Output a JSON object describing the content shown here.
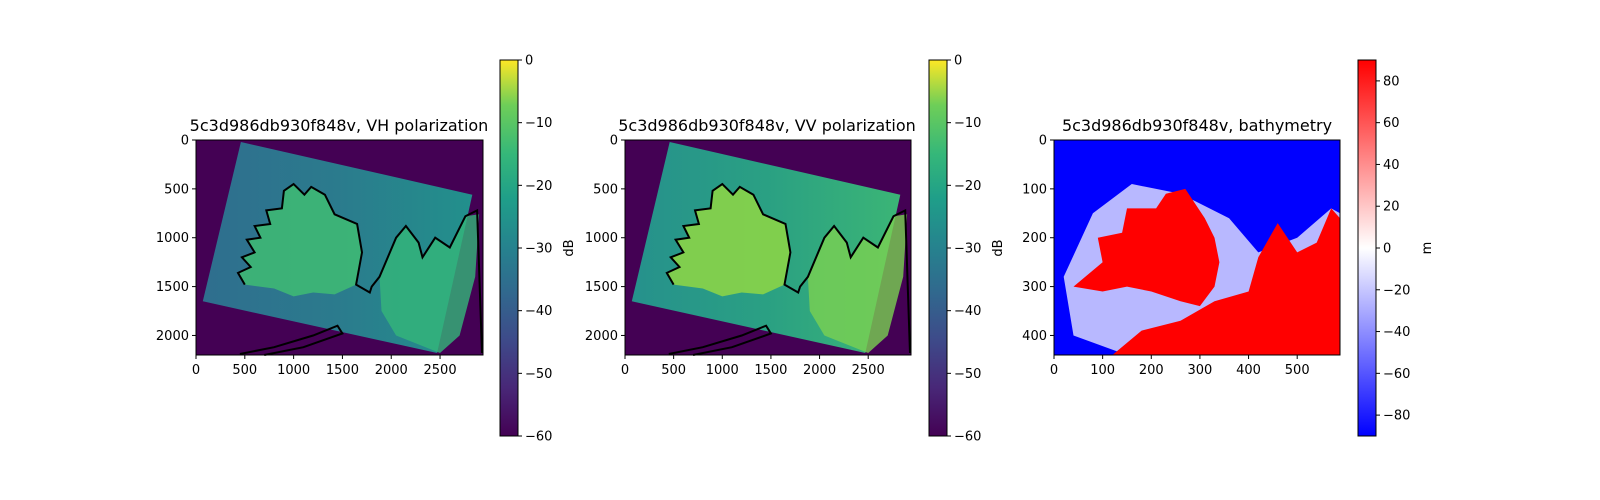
{
  "chart_data": [
    {
      "type": "heatmap",
      "title": "5c3d986db930f848v, VH polarization",
      "xlabel": "",
      "ylabel": "",
      "xlim": [
        0,
        2940
      ],
      "ylim": [
        2200,
        0
      ],
      "xticks": [
        0,
        500,
        1000,
        1500,
        2000,
        2500
      ],
      "yticks": [
        0,
        500,
        1000,
        1500,
        2000
      ],
      "colormap": "viridis",
      "colorbar": {
        "label": "dB",
        "range": [
          -60,
          0
        ],
        "ticks": [
          0,
          -10,
          -20,
          -30,
          -40,
          -50,
          -60
        ]
      },
      "fill_value": -60,
      "typical_land_value": -18,
      "typical_sea_value": -28,
      "coastline_overlay": true
    },
    {
      "type": "heatmap",
      "title": "5c3d986db930f848v, VV polarization",
      "xlabel": "",
      "ylabel": "",
      "xlim": [
        0,
        2940
      ],
      "ylim": [
        2200,
        0
      ],
      "xticks": [
        0,
        500,
        1000,
        1500,
        2000,
        2500
      ],
      "yticks": [
        0,
        500,
        1000,
        1500,
        2000
      ],
      "colormap": "viridis",
      "colorbar": {
        "label": "dB",
        "range": [
          -60,
          0
        ],
        "ticks": [
          0,
          -10,
          -20,
          -30,
          -40,
          -50,
          -60
        ]
      },
      "fill_value": -60,
      "typical_land_value": -12,
      "typical_sea_value": -20,
      "coastline_overlay": true
    },
    {
      "type": "heatmap",
      "title": "5c3d986db930f848v, bathymetry",
      "xlabel": "",
      "ylabel": "",
      "xlim": [
        0,
        588
      ],
      "ylim": [
        440,
        0
      ],
      "xticks": [
        0,
        100,
        200,
        300,
        400,
        500
      ],
      "yticks": [
        0,
        100,
        200,
        300,
        400
      ],
      "colormap": "bwr",
      "colorbar": {
        "label": "m",
        "range": [
          -90,
          90
        ],
        "ticks": [
          80,
          60,
          40,
          20,
          0,
          -20,
          -40,
          -60,
          -80
        ]
      },
      "coastline_overlay": false
    }
  ],
  "colors": {
    "viridis_low": "#440154",
    "viridis_mid": "#21918c",
    "viridis_high": "#fde725",
    "bwr_low": "#0000ff",
    "bwr_mid": "#ffffff",
    "bwr_high": "#ff0000",
    "coastline": "#000000"
  }
}
